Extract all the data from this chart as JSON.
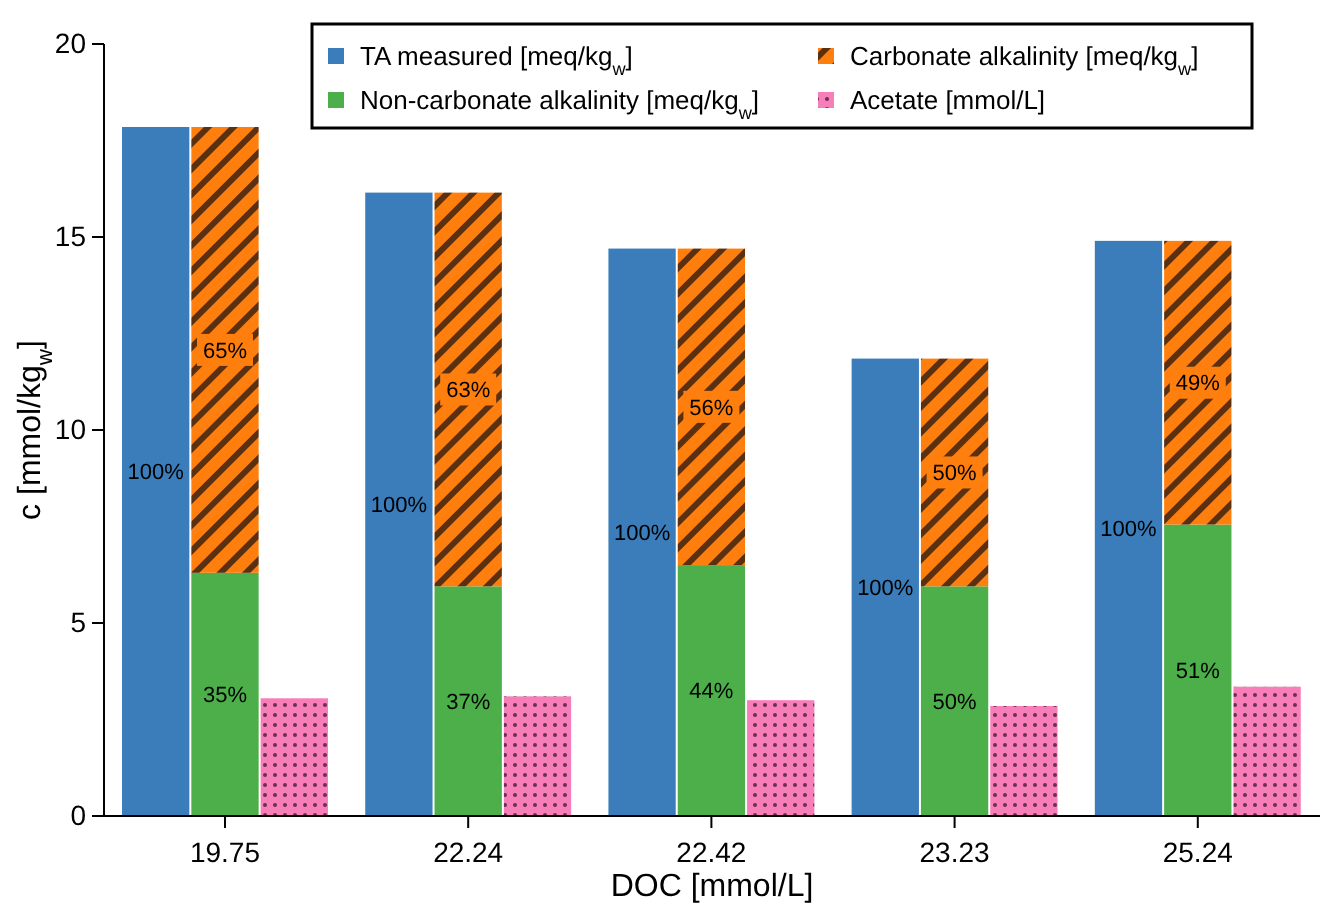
{
  "chart_data": {
    "type": "bar",
    "stacked": true,
    "xlabel": "DOC [mmol/L]",
    "ylabel": "c [mmol/kg$_{w}$]",
    "categories": [
      null,
      "19.75",
      null,
      null,
      "22.24",
      null,
      null,
      "22.42",
      null,
      null,
      "23.23",
      null,
      null,
      "25.24",
      null
    ],
    "ylim": [
      0,
      20
    ],
    "yticks": [
      0,
      5,
      10,
      15,
      20
    ],
    "grid": false,
    "legend": "top",
    "series": [
      {
        "name": "TA measured [meq/kg$_{w}$]",
        "color": "#3a7dba",
        "values": [
          17.85,
          null,
          null,
          16.15,
          null,
          null,
          14.7,
          null,
          null,
          11.85,
          null,
          null,
          14.9,
          null,
          null
        ]
      },
      {
        "name": "Non-carbonate alkalinity [meq/kg$_{w}$]",
        "color": "#4caf4a",
        "values": [
          null,
          6.3,
          null,
          null,
          5.95,
          null,
          null,
          6.5,
          null,
          null,
          5.95,
          null,
          null,
          7.55,
          null
        ]
      },
      {
        "name": "Carbonate alkalinity [meq/kg$_{w}$]",
        "color": "#ff7f0e",
        "values": [
          null,
          11.55,
          null,
          null,
          10.2,
          null,
          null,
          8.2,
          null,
          null,
          5.9,
          null,
          null,
          7.35,
          null
        ]
      },
      {
        "name": "Acetate [mmol/L]",
        "color": "#f77eb9",
        "values": [
          null,
          null,
          3.05,
          null,
          null,
          3.1,
          null,
          null,
          3.0,
          null,
          null,
          2.85,
          null,
          null,
          3.35
        ]
      }
    ],
    "annotations": [
      "100%",
      "35%",
      "65%",
      "100%",
      "37%",
      "63%",
      "100%",
      "44%",
      "56%",
      "100%",
      "50%",
      "50%",
      "100%",
      "51%",
      "49%"
    ]
  }
}
